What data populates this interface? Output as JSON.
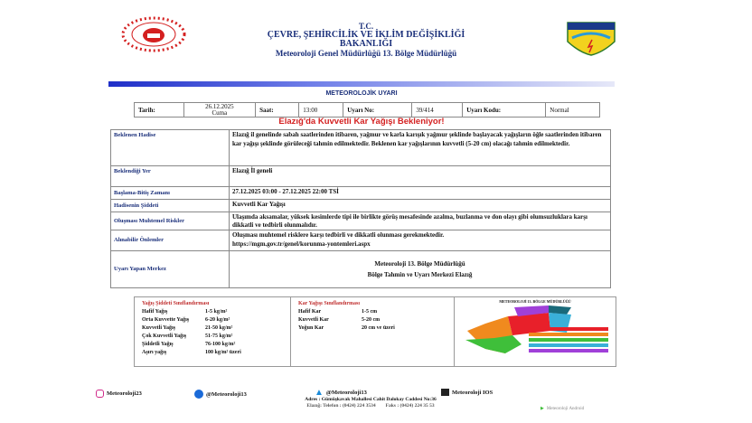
{
  "header": {
    "line1": "T.C.",
    "line2": "ÇEVRE, ŞEHİRCİLİK VE İKLİM DEĞİŞİKLİĞİ",
    "line3": "BAKANLIĞI",
    "line4": "Meteoroloji Genel Müdürlüğü 13. Bölge Müdürlüğü",
    "logo_right_text": "METEOROLOJİ"
  },
  "warning_title": "METEOROLOJİK UYARI",
  "info": {
    "date_label": "Tarih:",
    "date": "26.12.2025",
    "day": "Cuma",
    "time_label": "Saat:",
    "time": "13:00",
    "no_label": "Uyarı No:",
    "no": "39/414",
    "code_label": "Uyarı Kodu:",
    "code": "Normal"
  },
  "headline": "Elazığ'da Kuvvetli Kar Yağışı Bekleniyor!",
  "rows": [
    {
      "label": "Beklenen Hadise",
      "value": "Elazığ il genelinde sabah saatlerinden itibaren, yağmur ve karla karışık yağmur şeklinde başlayacak yağışların öğle saatlerinden itibaren kar yağışı şeklinde görüleceği tahmin edilmektedir. Beklenen kar yağışlarının kuvvetli (5-20 cm) olacağı tahmin edilmektedir."
    },
    {
      "label": "Beklendiği Yer",
      "value": "Elazığ İl geneli"
    },
    {
      "label": "Başlama-Bitiş Zamanı",
      "value": "27.12.2025 03:00 - 27.12.2025 22:00 TSİ"
    },
    {
      "label": "Hadisenin Şiddeti",
      "value": "Kuvvetli Kar Yağışı"
    },
    {
      "label": "Oluşması Muhtemel Riskler",
      "value": "Ulaşımda aksamalar, yüksek kesimlerde tipi ile birlikte görüş mesafesinde azalma, buzlanma ve don olayı gibi olumsuzluklara karşı dikkatli ve tedbirli olunmalıdır."
    },
    {
      "label": "Alınabilir Önlemler",
      "value": "Oluşması muhtemel risklere karşı tedbirli ve dikkatli olunması gerekmektedir.",
      "link": "https://mgm.gov.tr/genel/korunma-yontemleri.aspx"
    },
    {
      "label": "Uyarı Yapan Merkez",
      "value": "Meteoroloji 13. Bölge Müdürlüğü",
      "value2": "Bölge Tahmin ve Uyarı Merkezi Elazığ"
    }
  ],
  "rain": {
    "title": "Yağış Şiddeti Sınıflandırması",
    "items": [
      [
        "Hafif Yağış",
        "1-5 kg/m²"
      ],
      [
        "Orta Kuvvette Yağış",
        "6-20 kg/m²"
      ],
      [
        "Kuvvetli Yağış",
        "21-50 kg/m²"
      ],
      [
        "Çok Kuvvetli Yağış",
        "51-75 kg/m²"
      ],
      [
        "Şiddetli Yağış",
        "76-100 kg/m²"
      ],
      [
        "Aşırı yağış",
        "100 kg/m² üzeri"
      ]
    ]
  },
  "snow": {
    "title": "Kar Yağışı Sınıflandırması",
    "items": [
      [
        "Hafif Kar",
        "1-5 cm"
      ],
      [
        "Kuvvetli Kar",
        "5-20 cm"
      ],
      [
        "Yoğun Kar",
        "20 cm ve üzeri"
      ]
    ]
  },
  "map": {
    "title": "METEOROLOJİ 13. BÖLGE MÜDÜRLÜĞÜ",
    "colors": [
      "#e8202a",
      "#f08a1e",
      "#3fbf3a",
      "#3ab0d8",
      "#a040d8",
      "#1a6a7a"
    ]
  },
  "footer": {
    "instagram": "Meteoroloji23",
    "facebook": "@Meteoroloji13",
    "twitter": "@Meteoroloji13",
    "ios": "Meteoroloji IOS",
    "android": "Meteoroloji Android",
    "address": "Adres : Gümüşkavak Mahallesi Cahit Dalokay Caddesi No:36",
    "phone": "Elazığ: Telefon : (0424) 224 3534",
    "fax": "Faks : (0424) 224 35 53"
  }
}
